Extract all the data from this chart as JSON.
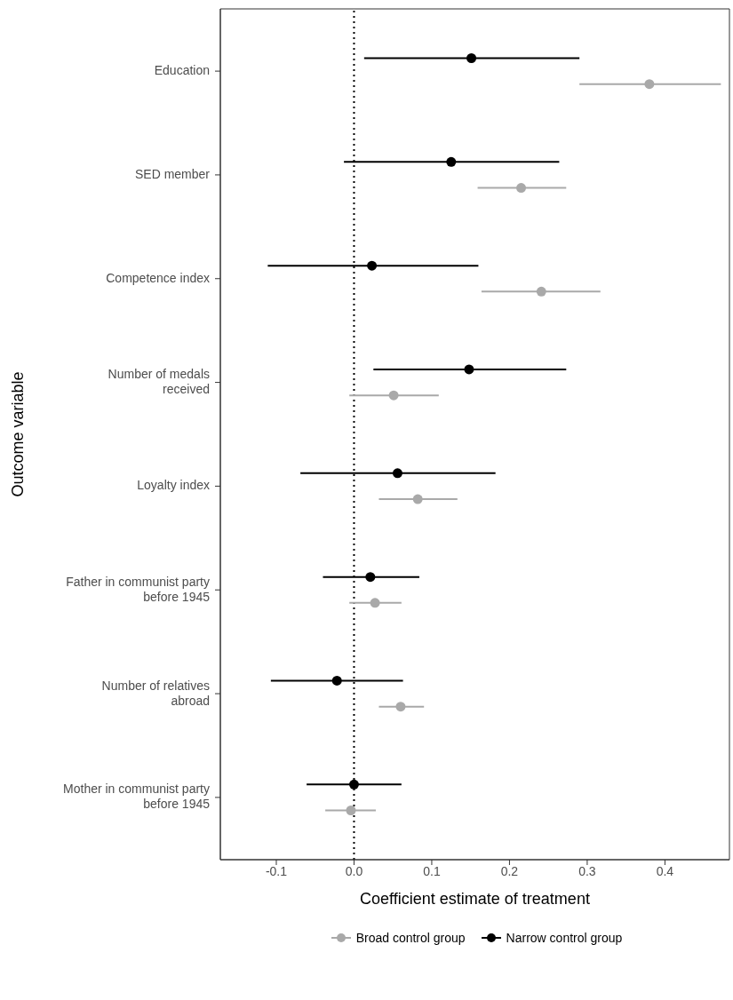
{
  "chart_data": {
    "type": "scatter",
    "orientation": "horizontal",
    "xlabel": "Coefficient estimate of treatment",
    "ylabel": "Outcome variable",
    "categories": [
      "Education",
      "SED member",
      "Competence index",
      "Number of medals\nreceived",
      "Loyalty index",
      "Father in communist party\nbefore 1945",
      "Number of relatives\nabroad",
      "Mother in communist party\nbefore 1945"
    ],
    "series": [
      {
        "name": "Broad control group",
        "color": "#a9a9a9",
        "values": [
          0.38,
          0.215,
          0.241,
          0.051,
          0.082,
          0.027,
          0.06,
          -0.004
        ],
        "errors": [
          [
            0.29,
            0.472
          ],
          [
            0.159,
            0.273
          ],
          [
            0.164,
            0.317
          ],
          [
            -0.006,
            0.109
          ],
          [
            0.032,
            0.133
          ],
          [
            -0.006,
            0.061
          ],
          [
            0.032,
            0.09
          ],
          [
            -0.037,
            0.028
          ]
        ]
      },
      {
        "name": "Narrow control group",
        "color": "#000000",
        "values": [
          0.151,
          0.125,
          0.023,
          0.148,
          0.056,
          0.021,
          -0.022,
          0.0
        ],
        "errors": [
          [
            0.013,
            0.29
          ],
          [
            -0.013,
            0.264
          ],
          [
            -0.111,
            0.16
          ],
          [
            0.025,
            0.273
          ],
          [
            -0.069,
            0.182
          ],
          [
            -0.04,
            0.084
          ],
          [
            -0.107,
            0.063
          ],
          [
            -0.061,
            0.061
          ]
        ]
      }
    ],
    "xlim": [
      -0.172,
      0.483
    ],
    "xticks": [
      -0.1,
      {
        "value": 0,
        "label": "0.0"
      },
      0.1,
      0.2,
      0.3,
      0.4
    ],
    "ref_lines": [
      {
        "axis": "x",
        "value": 0,
        "line_style": "dotted",
        "color": "#000000"
      }
    ],
    "grid": false,
    "legend": "bottom",
    "marker": "circle"
  }
}
